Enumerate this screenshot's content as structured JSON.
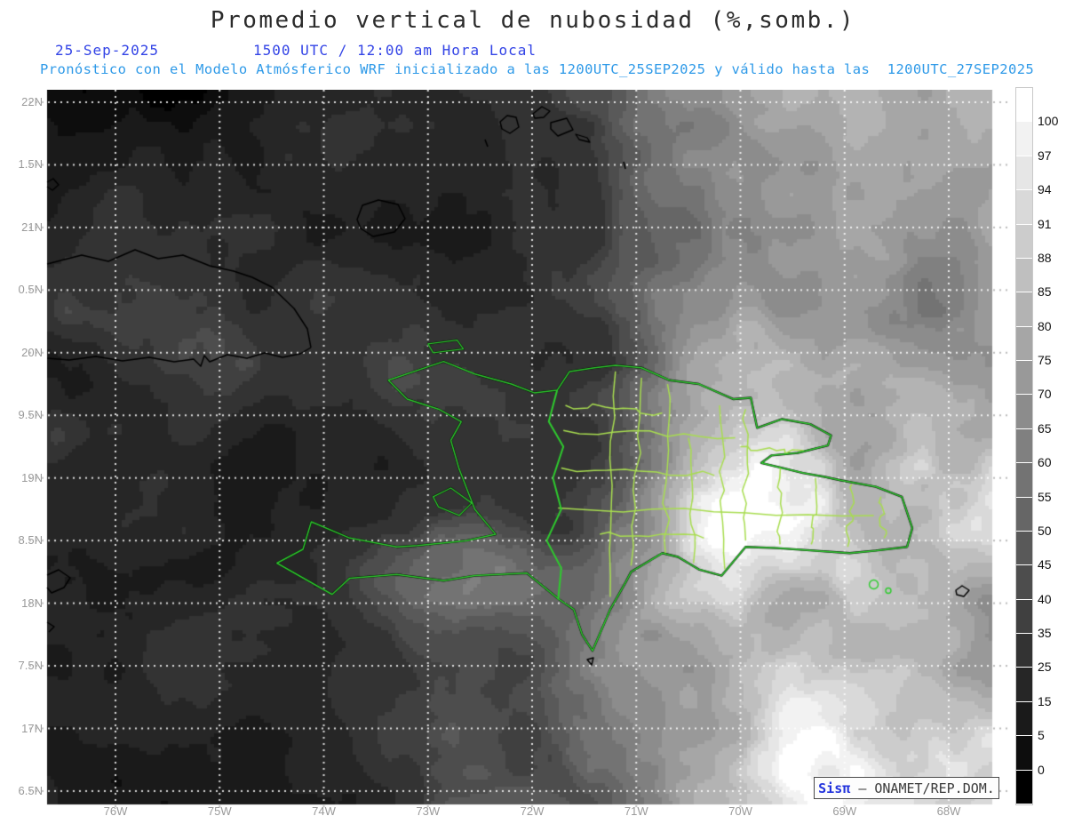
{
  "header": {
    "title": "Promedio vertical de nubosidad (%,somb.)",
    "date": "25-Sep-2025",
    "time": "1500 UTC / 12:00 am Hora Local",
    "forecast": "Pronóstico con el Modelo Atmósferico WRF inicializado a las 1200UTC_25SEP2025 y válido hasta las  1200UTC_27SEP2025"
  },
  "axes": {
    "lat_labels": [
      "22N",
      "1.5N",
      "21N",
      "0.5N",
      "20N",
      "9.5N",
      "19N",
      "8.5N",
      "18N",
      "7.5N",
      "17N",
      "6.5N"
    ],
    "lon_labels": [
      "76W",
      "75W",
      "74W",
      "73W",
      "72W",
      "71W",
      "70W",
      "69W",
      "68W"
    ]
  },
  "colorbar": {
    "tick_labels": [
      "100",
      "97",
      "94",
      "91",
      "88",
      "85",
      "80",
      "75",
      "70",
      "65",
      "60",
      "55",
      "50",
      "45",
      "40",
      "35",
      "25",
      "15",
      "5",
      "0"
    ],
    "segments": 21,
    "top_color": "#ffffff",
    "bottom_color": "#000000"
  },
  "branding": {
    "app": "Sisπ",
    "separator": "– ",
    "org": "ONAMET/REP.DOM."
  },
  "map_meta": {
    "shading_levels": [
      0,
      5,
      15,
      25,
      35,
      40,
      45,
      50,
      55,
      60,
      65,
      70,
      75,
      80,
      85,
      88,
      91,
      94,
      97,
      100
    ],
    "grid_dot_color": "#ffffff",
    "outer_tick_color": "#bbbbbb",
    "coastline_color": "#000000",
    "country_border_color": "#2ecc2e",
    "province_border_color": "#a8dd50"
  }
}
